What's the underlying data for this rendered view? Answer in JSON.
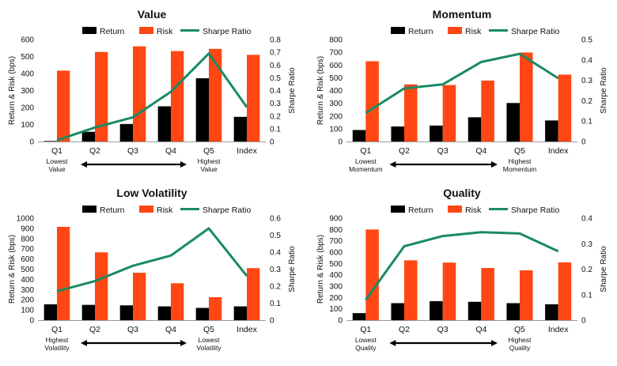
{
  "chart_data": [
    {
      "type": "bar",
      "title": "Value",
      "categories": [
        "Q1",
        "Q2",
        "Q3",
        "Q4",
        "Q5",
        "Index"
      ],
      "series": [
        {
          "name": "Return",
          "values": [
            3,
            57,
            103,
            207,
            372,
            145
          ]
        },
        {
          "name": "Risk",
          "values": [
            417,
            527,
            560,
            532,
            545,
            510
          ]
        },
        {
          "name": "Sharpe Ratio",
          "values": [
            0.01,
            0.11,
            0.19,
            0.39,
            0.69,
            0.27
          ],
          "kind": "line",
          "axis": "right"
        }
      ],
      "ylabel": "Return & Risk (bps)",
      "y2label": "Sharpe Ratio",
      "ylim": [
        0,
        600
      ],
      "yticks": [
        0,
        100,
        200,
        300,
        400,
        500,
        600
      ],
      "y2lim": [
        0,
        0.8
      ],
      "y2ticks": [
        0,
        0.1,
        0.2,
        0.3,
        0.4,
        0.5,
        0.6,
        0.7,
        0.8
      ],
      "y2decimals": 1,
      "notes": {
        "left": [
          "Lowest",
          "Value"
        ],
        "right": [
          "Highest",
          "Value"
        ]
      },
      "legend": "top"
    },
    {
      "type": "bar",
      "title": "Momentum",
      "categories": [
        "Q1",
        "Q2",
        "Q3",
        "Q4",
        "Q5",
        "Index"
      ],
      "series": [
        {
          "name": "Return",
          "values": [
            90,
            118,
            125,
            190,
            302,
            165
          ]
        },
        {
          "name": "Risk",
          "values": [
            630,
            448,
            443,
            478,
            698,
            525
          ]
        },
        {
          "name": "Sharpe Ratio",
          "values": [
            0.14,
            0.26,
            0.28,
            0.39,
            0.43,
            0.31
          ],
          "kind": "line",
          "axis": "right"
        }
      ],
      "ylabel": "Return & Risk (bps)",
      "y2label": "Sharpe Ratio",
      "ylim": [
        0,
        800
      ],
      "yticks": [
        0,
        100,
        200,
        300,
        400,
        500,
        600,
        700,
        800
      ],
      "y2lim": [
        0,
        0.5
      ],
      "y2ticks": [
        0,
        0.1,
        0.2,
        0.3,
        0.4,
        0.5
      ],
      "y2decimals": 1,
      "notes": {
        "left": [
          "Lowest",
          "Momentum"
        ],
        "right": [
          "Highest",
          "Momentum"
        ]
      },
      "legend": "top"
    },
    {
      "type": "bar",
      "title": "Low Volatility",
      "categories": [
        "Q1",
        "Q2",
        "Q3",
        "Q4",
        "Q5",
        "Index"
      ],
      "series": [
        {
          "name": "Return",
          "values": [
            155,
            150,
            145,
            135,
            120,
            135
          ]
        },
        {
          "name": "Risk",
          "values": [
            915,
            665,
            465,
            362,
            225,
            510
          ]
        },
        {
          "name": "Sharpe Ratio",
          "values": [
            0.17,
            0.23,
            0.32,
            0.38,
            0.54,
            0.26
          ],
          "kind": "line",
          "axis": "right"
        }
      ],
      "ylabel": "Return & Risk (bps)",
      "y2label": "Sharpe Ratio",
      "ylim": [
        0,
        1000
      ],
      "yticks": [
        0,
        100,
        200,
        300,
        400,
        500,
        600,
        700,
        800,
        900,
        1000
      ],
      "y2lim": [
        0,
        0.6
      ],
      "y2ticks": [
        0,
        0.1,
        0.2,
        0.3,
        0.4,
        0.5,
        0.6
      ],
      "y2decimals": 1,
      "notes": {
        "left": [
          "Highest",
          "Volatility"
        ],
        "right": [
          "Lowest",
          "Volatility"
        ]
      },
      "legend": "top"
    },
    {
      "type": "bar",
      "title": "Quality",
      "categories": [
        "Q1",
        "Q2",
        "Q3",
        "Q4",
        "Q5",
        "Index"
      ],
      "series": [
        {
          "name": "Return",
          "values": [
            62,
            150,
            168,
            162,
            150,
            140
          ]
        },
        {
          "name": "Risk",
          "values": [
            800,
            528,
            508,
            460,
            440,
            510
          ]
        },
        {
          "name": "Sharpe Ratio",
          "values": [
            0.08,
            0.29,
            0.33,
            0.345,
            0.34,
            0.27
          ],
          "kind": "line",
          "axis": "right"
        }
      ],
      "ylabel": "Return & Risk (bps)",
      "y2label": "Sharpe Ratio",
      "ylim": [
        0,
        900
      ],
      "yticks": [
        0,
        100,
        200,
        300,
        400,
        500,
        600,
        700,
        800,
        900
      ],
      "y2lim": [
        0,
        0.4
      ],
      "y2ticks": [
        0,
        0.1,
        0.2,
        0.3,
        0.4
      ],
      "y2decimals": 1,
      "notes": {
        "left": [
          "Lowest",
          "Quality"
        ],
        "right": [
          "Highest",
          "Quality"
        ]
      },
      "legend": "top"
    }
  ],
  "colors": {
    "return": "#000000",
    "risk": "#ff4713",
    "sharpe": "#1a8a63",
    "axis": "#9a9a9a",
    "text": "#111111"
  }
}
